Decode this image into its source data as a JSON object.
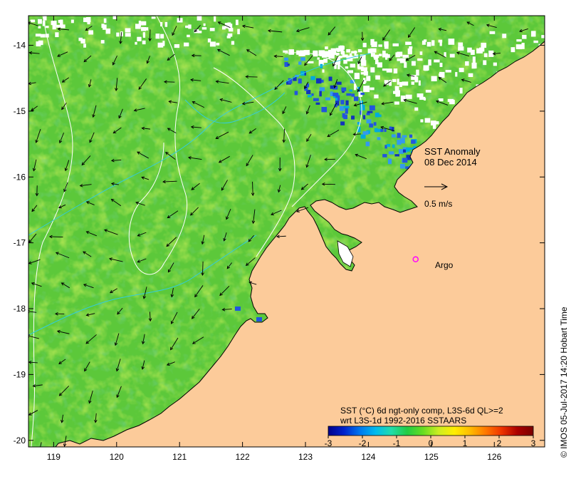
{
  "title": {
    "line1": "SST Anomaly",
    "line2": "08 Dec 2014"
  },
  "vector_scale": {
    "label": "0.5 m/s"
  },
  "argo": {
    "label": "Argo",
    "lon": 124.75,
    "lat": -17.25,
    "color": "#ff00ff"
  },
  "colorbar": {
    "caption_line1": "SST (°C) 6d ngt-only comp, L3S-6d QL>=2",
    "caption_line2": "wrt L3S-1d 1992-2016 SSTAARS",
    "ticks": [
      "-3",
      "-2",
      "-1",
      "0",
      "1",
      "2",
      "3"
    ],
    "min": -3,
    "max": 3,
    "colors": [
      "#00008b",
      "#0022cc",
      "#0077ee",
      "#00bbee",
      "#22ddaa",
      "#22cc44",
      "#66dd22",
      "#ccee22",
      "#ffee00",
      "#ffbb00",
      "#ff7700",
      "#ee3300",
      "#aa0000",
      "#7a0000"
    ]
  },
  "axes": {
    "x_ticks": [
      "119",
      "120",
      "121",
      "122",
      "123",
      "124",
      "125",
      "126"
    ],
    "y_ticks": [
      "-14",
      "-15",
      "-16",
      "-17",
      "-18",
      "-19",
      "-20"
    ],
    "lon_range": [
      118.6,
      126.8
    ],
    "lat_range": [
      -20.1,
      -13.55
    ]
  },
  "credit": "© IMOS 05-Jul-2017 14:20 Hobart Time",
  "colors": {
    "land": "#fccb9a",
    "sea_base": "#5cc83a",
    "frame": "#000000",
    "cloud": "#ffffff"
  }
}
